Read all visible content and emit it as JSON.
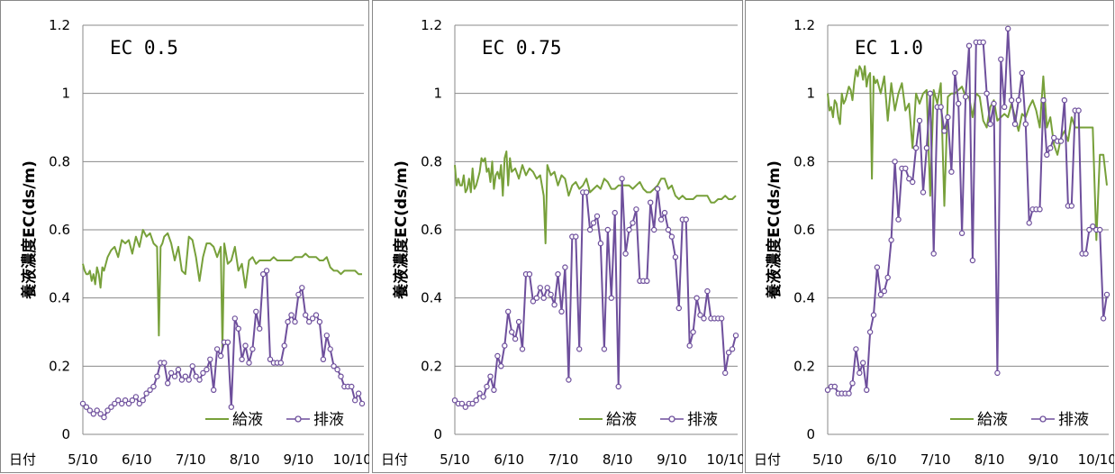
{
  "colors": {
    "supply": "#77a03a",
    "drain": "#6e4f9c"
  },
  "chart_data": [
    {
      "type": "line",
      "title": "EC 0.5",
      "ylabel": "養液濃度EC(ds/m)",
      "xlabel": "日付",
      "ylim": [
        0,
        1.2
      ],
      "yticks": [
        "0",
        "0.2",
        "0.4",
        "0.6",
        "0.8",
        "1",
        "1.2"
      ],
      "xticks": [
        "5/10",
        "6/10",
        "7/10",
        "8/10",
        "9/10",
        "10/10"
      ],
      "grid": true,
      "legend_position": "bottom-right",
      "series": [
        {
          "name": "給液",
          "x": [
            0,
            1,
            2,
            3,
            4,
            5,
            6,
            7,
            8,
            9,
            10,
            11,
            12,
            14,
            16,
            18,
            20,
            22,
            24,
            26,
            28,
            30,
            32,
            34,
            36,
            38,
            40,
            42,
            43,
            44,
            45,
            46,
            48,
            50,
            52,
            54,
            56,
            58,
            60,
            62,
            64,
            66,
            68,
            70,
            72,
            74,
            76,
            78,
            79,
            80,
            82,
            84,
            86,
            88,
            90,
            92,
            94,
            96,
            98,
            100,
            102,
            104,
            106,
            108,
            110,
            112,
            114,
            116,
            118,
            120,
            122,
            124,
            126,
            128,
            130,
            132,
            134,
            136,
            138,
            140,
            142,
            144,
            146,
            148,
            150,
            152,
            154,
            156,
            158
          ],
          "y": [
            0.5,
            0.48,
            0.47,
            0.47,
            0.48,
            0.45,
            0.47,
            0.44,
            0.49,
            0.47,
            0.43,
            0.49,
            0.48,
            0.52,
            0.54,
            0.55,
            0.52,
            0.57,
            0.56,
            0.57,
            0.53,
            0.58,
            0.55,
            0.6,
            0.58,
            0.59,
            0.56,
            0.55,
            0.29,
            0.55,
            0.56,
            0.58,
            0.59,
            0.56,
            0.51,
            0.55,
            0.48,
            0.47,
            0.58,
            0.57,
            0.52,
            0.45,
            0.52,
            0.56,
            0.56,
            0.55,
            0.52,
            0.55,
            0.25,
            0.56,
            0.5,
            0.51,
            0.55,
            0.48,
            0.5,
            0.43,
            0.51,
            0.52,
            0.5,
            0.51,
            0.51,
            0.51,
            0.51,
            0.52,
            0.51,
            0.51,
            0.51,
            0.51,
            0.51,
            0.52,
            0.52,
            0.52,
            0.53,
            0.52,
            0.52,
            0.52,
            0.51,
            0.51,
            0.52,
            0.49,
            0.48,
            0.48,
            0.47,
            0.48,
            0.48,
            0.48,
            0.48,
            0.47,
            0.47
          ]
        },
        {
          "name": "排液",
          "x": [
            0,
            2,
            4,
            6,
            8,
            10,
            12,
            14,
            16,
            18,
            20,
            22,
            24,
            26,
            28,
            30,
            32,
            34,
            36,
            38,
            40,
            42,
            44,
            46,
            48,
            50,
            52,
            54,
            56,
            58,
            60,
            62,
            64,
            66,
            68,
            70,
            72,
            74,
            76,
            78,
            80,
            82,
            84,
            86,
            88,
            90,
            92,
            94,
            96,
            98,
            100,
            102,
            104,
            106,
            108,
            110,
            112,
            114,
            116,
            118,
            120,
            122,
            124,
            126,
            128,
            130,
            132,
            134,
            136,
            138,
            140,
            142,
            144,
            146,
            148,
            150,
            152,
            154,
            156,
            158
          ],
          "y": [
            0.09,
            0.08,
            0.07,
            0.06,
            0.07,
            0.06,
            0.05,
            0.07,
            0.08,
            0.09,
            0.1,
            0.09,
            0.1,
            0.09,
            0.1,
            0.11,
            0.09,
            0.1,
            0.12,
            0.13,
            0.14,
            0.17,
            0.21,
            0.21,
            0.15,
            0.18,
            0.17,
            0.19,
            0.16,
            0.17,
            0.16,
            0.2,
            0.17,
            0.16,
            0.18,
            0.19,
            0.22,
            0.13,
            0.25,
            0.23,
            0.27,
            0.27,
            0.08,
            0.34,
            0.31,
            0.22,
            0.26,
            0.21,
            0.25,
            0.36,
            0.31,
            0.47,
            0.48,
            0.22,
            0.21,
            0.21,
            0.21,
            0.26,
            0.33,
            0.35,
            0.33,
            0.41,
            0.43,
            0.35,
            0.33,
            0.34,
            0.35,
            0.33,
            0.22,
            0.29,
            0.25,
            0.2,
            0.19,
            0.17,
            0.14,
            0.14,
            0.14,
            0.1,
            0.12,
            0.09
          ]
        }
      ]
    },
    {
      "type": "line",
      "title": "EC 0.75",
      "ylabel": "養液濃度EC(ds/m)",
      "xlabel": "日付",
      "ylim": [
        0,
        1.2
      ],
      "yticks": [
        "0",
        "0.2",
        "0.4",
        "0.6",
        "0.8",
        "1",
        "1.2"
      ],
      "xticks": [
        "5/10",
        "6/10",
        "7/10",
        "8/10",
        "9/10",
        "10/10"
      ],
      "grid": true,
      "legend_position": "bottom-right",
      "series": [
        {
          "name": "給液",
          "x": [
            0,
            1,
            2,
            3,
            4,
            5,
            6,
            7,
            8,
            9,
            10,
            11,
            12,
            13,
            14,
            15,
            16,
            17,
            18,
            19,
            20,
            21,
            22,
            23,
            24,
            25,
            26,
            27,
            28,
            29,
            30,
            31,
            32,
            34,
            36,
            38,
            40,
            42,
            44,
            46,
            48,
            50,
            51,
            52,
            54,
            56,
            58,
            60,
            62,
            64,
            66,
            68,
            70,
            72,
            74,
            76,
            78,
            80,
            82,
            84,
            86,
            88,
            90,
            92,
            94,
            96,
            98,
            100,
            102,
            104,
            106,
            108,
            110,
            112,
            114,
            116,
            118,
            120,
            122,
            124,
            126,
            128,
            130,
            132,
            134,
            136,
            138,
            140,
            142,
            144,
            146,
            148,
            150,
            152,
            154,
            156,
            158
          ],
          "y": [
            0.79,
            0.73,
            0.75,
            0.73,
            0.73,
            0.76,
            0.71,
            0.72,
            0.75,
            0.71,
            0.78,
            0.72,
            0.73,
            0.75,
            0.77,
            0.81,
            0.8,
            0.81,
            0.77,
            0.78,
            0.74,
            0.8,
            0.72,
            0.76,
            0.77,
            0.75,
            0.79,
            0.7,
            0.81,
            0.83,
            0.73,
            0.81,
            0.77,
            0.78,
            0.75,
            0.79,
            0.76,
            0.78,
            0.77,
            0.75,
            0.76,
            0.7,
            0.56,
            0.79,
            0.76,
            0.77,
            0.73,
            0.76,
            0.75,
            0.7,
            0.73,
            0.74,
            0.72,
            0.73,
            0.75,
            0.71,
            0.72,
            0.73,
            0.72,
            0.75,
            0.74,
            0.72,
            0.72,
            0.73,
            0.73,
            0.73,
            0.73,
            0.72,
            0.73,
            0.74,
            0.72,
            0.71,
            0.71,
            0.72,
            0.73,
            0.75,
            0.75,
            0.72,
            0.73,
            0.7,
            0.69,
            0.7,
            0.69,
            0.69,
            0.69,
            0.7,
            0.7,
            0.7,
            0.7,
            0.68,
            0.68,
            0.69,
            0.69,
            0.7,
            0.69,
            0.69,
            0.7
          ]
        },
        {
          "name": "排液",
          "x": [
            0,
            2,
            4,
            6,
            8,
            10,
            12,
            14,
            16,
            18,
            20,
            22,
            24,
            26,
            28,
            30,
            32,
            34,
            36,
            38,
            40,
            42,
            44,
            46,
            48,
            50,
            52,
            54,
            56,
            58,
            60,
            62,
            64,
            66,
            68,
            70,
            72,
            74,
            76,
            78,
            80,
            82,
            84,
            86,
            88,
            90,
            92,
            94,
            96,
            98,
            100,
            102,
            104,
            106,
            108,
            110,
            112,
            114,
            116,
            118,
            120,
            122,
            124,
            126,
            128,
            130,
            132,
            134,
            136,
            138,
            140,
            142,
            144,
            146,
            148,
            150,
            152,
            154,
            156,
            158
          ],
          "y": [
            0.1,
            0.09,
            0.09,
            0.08,
            0.09,
            0.09,
            0.1,
            0.12,
            0.11,
            0.14,
            0.17,
            0.13,
            0.23,
            0.2,
            0.26,
            0.36,
            0.3,
            0.28,
            0.33,
            0.25,
            0.47,
            0.47,
            0.39,
            0.4,
            0.43,
            0.4,
            0.43,
            0.41,
            0.38,
            0.47,
            0.36,
            0.49,
            0.16,
            0.58,
            0.58,
            0.25,
            0.71,
            0.71,
            0.6,
            0.62,
            0.64,
            0.56,
            0.25,
            0.6,
            0.4,
            0.65,
            0.14,
            0.75,
            0.53,
            0.6,
            0.62,
            0.66,
            0.45,
            0.45,
            0.45,
            0.68,
            0.6,
            0.72,
            0.63,
            0.65,
            0.6,
            0.58,
            0.52,
            0.37,
            0.63,
            0.63,
            0.26,
            0.3,
            0.4,
            0.35,
            0.34,
            0.42,
            0.34,
            0.34,
            0.34,
            0.34,
            0.18,
            0.24,
            0.25,
            0.29
          ]
        }
      ]
    },
    {
      "type": "line",
      "title": "EC 1.0",
      "ylabel": "養液濃度EC(ds/m)",
      "xlabel": "日付",
      "ylim": [
        0,
        1.2
      ],
      "yticks": [
        "0",
        "0.2",
        "0.4",
        "0.6",
        "0.8",
        "1",
        "1.2"
      ],
      "xticks": [
        "5/10",
        "6/10",
        "7/10",
        "8/10",
        "9/10",
        "10/10"
      ],
      "grid": true,
      "legend_position": "bottom-right",
      "series": [
        {
          "name": "給液",
          "x": [
            0,
            1,
            2,
            3,
            4,
            5,
            6,
            7,
            8,
            9,
            10,
            11,
            12,
            13,
            14,
            15,
            16,
            17,
            18,
            19,
            20,
            21,
            22,
            23,
            24,
            25,
            26,
            27,
            28,
            30,
            32,
            34,
            36,
            38,
            40,
            42,
            44,
            46,
            48,
            50,
            52,
            54,
            56,
            58,
            60,
            62,
            64,
            66,
            68,
            70,
            72,
            74,
            76,
            78,
            80,
            82,
            84,
            86,
            88,
            90,
            92,
            94,
            96,
            98,
            100,
            102,
            104,
            106,
            108,
            110,
            112,
            114,
            116,
            118,
            120,
            122,
            124,
            126,
            128,
            130,
            132,
            134,
            136,
            138,
            140,
            142,
            144,
            146,
            148,
            150,
            152,
            154,
            156,
            158
          ],
          "y": [
            1.0,
            0.95,
            0.96,
            0.93,
            0.98,
            0.97,
            0.93,
            0.91,
            1.0,
            0.97,
            0.98,
            1.0,
            1.02,
            1.01,
            0.98,
            1.03,
            1.07,
            1.05,
            1.08,
            1.07,
            1.04,
            1.08,
            1.02,
            1.05,
            1.06,
            0.75,
            1.05,
            1.03,
            1.04,
            1.0,
            1.05,
            0.92,
            1.03,
            0.95,
            1.0,
            1.03,
            0.95,
            0.97,
            0.84,
            1.0,
            0.97,
            1.0,
            1.01,
            0.7,
            1.01,
            0.97,
            1.03,
            0.67,
            0.99,
            1.0,
            1.0,
            1.01,
            1.02,
            0.99,
            0.99,
            0.93,
            1.0,
            0.99,
            0.92,
            0.9,
            0.96,
            0.98,
            0.92,
            0.93,
            0.94,
            0.93,
            0.97,
            0.93,
            0.89,
            0.94,
            0.93,
            0.96,
            0.98,
            0.95,
            0.9,
            1.05,
            0.9,
            0.93,
            0.85,
            0.82,
            0.87,
            0.89,
            0.86,
            0.93,
            0.9,
            0.9,
            0.9,
            0.9,
            0.9,
            0.9,
            0.57,
            0.82,
            0.82,
            0.73
          ]
        },
        {
          "name": "排液",
          "x": [
            0,
            2,
            4,
            6,
            8,
            10,
            12,
            14,
            16,
            18,
            20,
            22,
            24,
            26,
            28,
            30,
            32,
            34,
            36,
            38,
            40,
            42,
            44,
            46,
            48,
            50,
            52,
            54,
            56,
            58,
            60,
            62,
            64,
            66,
            68,
            70,
            72,
            74,
            76,
            78,
            80,
            82,
            84,
            86,
            88,
            90,
            92,
            94,
            96,
            98,
            100,
            102,
            104,
            106,
            108,
            110,
            112,
            114,
            116,
            118,
            120,
            122,
            124,
            126,
            128,
            130,
            132,
            134,
            136,
            138,
            140,
            142,
            144,
            146,
            148,
            150,
            152,
            154,
            156,
            158
          ],
          "y": [
            0.13,
            0.14,
            0.14,
            0.12,
            0.12,
            0.12,
            0.12,
            0.15,
            0.25,
            0.18,
            0.21,
            0.13,
            0.3,
            0.35,
            0.49,
            0.41,
            0.42,
            0.46,
            0.57,
            0.8,
            0.63,
            0.78,
            0.78,
            0.75,
            0.74,
            0.84,
            0.92,
            0.71,
            0.84,
            1.0,
            0.53,
            0.96,
            0.96,
            0.89,
            0.93,
            0.77,
            1.06,
            0.97,
            0.59,
            0.99,
            1.14,
            0.51,
            1.15,
            1.15,
            1.15,
            1.0,
            0.91,
            0.97,
            0.18,
            1.1,
            0.96,
            1.19,
            0.98,
            0.91,
            0.98,
            1.06,
            0.91,
            0.62,
            0.66,
            0.66,
            0.66,
            0.98,
            0.82,
            0.84,
            0.87,
            0.86,
            0.86,
            0.98,
            0.67,
            0.67,
            0.95,
            0.95,
            0.53,
            0.53,
            0.6,
            0.61,
            0.6,
            0.6,
            0.34,
            0.41
          ]
        }
      ]
    }
  ]
}
